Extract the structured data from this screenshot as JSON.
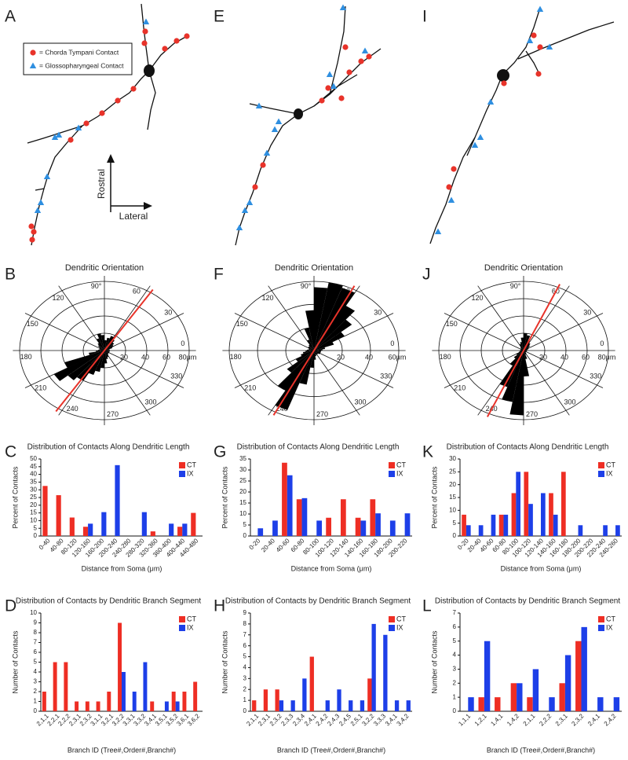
{
  "figure": {
    "panel_labels": [
      "A",
      "E",
      "I",
      "B",
      "F",
      "J",
      "C",
      "G",
      "K",
      "D",
      "H",
      "L"
    ],
    "contact_legend": [
      "= Chorda Tympani Contact",
      "= Glossopharyngeal Contact"
    ],
    "directions": [
      "Rostral",
      "Lateral"
    ]
  },
  "chart_data": [
    {
      "type": "polar",
      "title": "Dendritic Orientation",
      "rlim": [
        0,
        80
      ],
      "rticks": [
        20,
        40,
        60,
        {
          "value": 80,
          "label": "80μm"
        }
      ],
      "thetaticks": [
        0,
        30,
        60,
        {
          "value": 90,
          "label": "90°"
        },
        120,
        150,
        180,
        210,
        240,
        270,
        300,
        330
      ],
      "theta": [
        5,
        15,
        25,
        35,
        45,
        55,
        65,
        75,
        85,
        95,
        105,
        115,
        125,
        135,
        145,
        155,
        165,
        175,
        185,
        195,
        205,
        215,
        225,
        235,
        245,
        255,
        265,
        275,
        285,
        295,
        305,
        315,
        325,
        335,
        345,
        355
      ],
      "values": [
        5,
        5,
        8,
        10,
        12,
        15,
        18,
        15,
        12,
        18,
        20,
        15,
        10,
        8,
        6,
        5,
        5,
        6,
        8,
        15,
        40,
        55,
        45,
        40,
        30,
        25,
        20,
        15,
        10,
        8,
        6,
        5,
        5,
        5,
        5,
        5
      ],
      "color": "#000000",
      "mean_angle": 57,
      "mean_color": "#e8332a"
    },
    {
      "type": "polar",
      "title": "Dendritic Orientation",
      "rlim": [
        0,
        60
      ],
      "rticks": [
        20,
        40,
        {
          "value": 60,
          "label": "60μm"
        }
      ],
      "thetaticks": [
        0,
        30,
        60,
        {
          "value": 90,
          "label": "90°"
        },
        120,
        150,
        180,
        210,
        240,
        270,
        300,
        330
      ],
      "theta": [
        5,
        15,
        25,
        35,
        45,
        55,
        65,
        75,
        85,
        95,
        105,
        115,
        125,
        135,
        145,
        155,
        165,
        175,
        185,
        195,
        205,
        215,
        225,
        235,
        245,
        255,
        265,
        275,
        285,
        295,
        305,
        315,
        325,
        335,
        345,
        355
      ],
      "values": [
        6,
        8,
        15,
        25,
        35,
        45,
        58,
        60,
        55,
        35,
        20,
        10,
        6,
        5,
        5,
        4,
        4,
        5,
        6,
        8,
        10,
        15,
        25,
        40,
        55,
        30,
        15,
        8,
        5,
        4,
        4,
        4,
        5,
        5,
        5,
        5
      ],
      "color": "#000000",
      "mean_angle": 63,
      "mean_color": "#e8332a"
    },
    {
      "type": "polar",
      "title": "Dendritic Orientation",
      "rlim": [
        0,
        80
      ],
      "rticks": [
        20,
        40,
        60,
        {
          "value": 80,
          "label": "80μm"
        }
      ],
      "thetaticks": [
        0,
        30,
        60,
        {
          "value": 90,
          "label": "90°"
        },
        120,
        150,
        180,
        210,
        240,
        270,
        300,
        330
      ],
      "theta": [
        5,
        15,
        25,
        35,
        45,
        55,
        65,
        75,
        85,
        95,
        105,
        115,
        125,
        135,
        145,
        155,
        165,
        175,
        185,
        195,
        205,
        215,
        225,
        235,
        245,
        255,
        265,
        275,
        285,
        295,
        305,
        315,
        325,
        335,
        345,
        355
      ],
      "values": [
        3,
        4,
        5,
        6,
        8,
        10,
        12,
        18,
        20,
        15,
        10,
        8,
        5,
        4,
        3,
        3,
        3,
        3,
        3,
        4,
        5,
        8,
        12,
        20,
        45,
        60,
        75,
        30,
        10,
        5,
        4,
        3,
        3,
        3,
        3,
        3
      ],
      "color": "#000000",
      "mean_angle": 66,
      "mean_color": "#e8332a"
    },
    {
      "type": "bar",
      "title": "Distribution of Contacts Along Dendritic Length",
      "xlabel": "Distance from Soma (μm)",
      "ylabel": "Percent of Contacts",
      "categories": [
        "0-40",
        "40-80",
        "80-120",
        "120-160",
        "160-200",
        "200-240",
        "240-280",
        "280-320",
        "320-360",
        "360-400",
        "400-440",
        "440-480"
      ],
      "series": [
        {
          "name": "CT",
          "color": "#ee2e24",
          "values": [
            32.5,
            26.5,
            12,
            6,
            0,
            0,
            0,
            0,
            3,
            0,
            6,
            15
          ]
        },
        {
          "name": "IX",
          "color": "#1d3fe8",
          "values": [
            0,
            0,
            0,
            8,
            15.5,
            46,
            0,
            15.5,
            0,
            8,
            8,
            0
          ]
        }
      ],
      "ylim": [
        0,
        50
      ],
      "yticks": [
        0,
        5,
        10,
        15,
        20,
        25,
        30,
        35,
        40,
        45,
        50
      ],
      "legend": "upper right"
    },
    {
      "type": "bar",
      "title": "Distribution of Contacts Along Dendritic Length",
      "xlabel": "Distance from Soma (μm)",
      "ylabel": "Percent of Contacts",
      "categories": [
        "0-20",
        "20-40",
        "40-60",
        "60-80",
        "80-100",
        "100-120",
        "120-140",
        "140-160",
        "160-180",
        "180-200",
        "200-220"
      ],
      "series": [
        {
          "name": "CT",
          "color": "#ee2e24",
          "values": [
            0,
            0,
            33.3,
            16.7,
            0,
            8.3,
            16.7,
            8.3,
            16.7,
            0,
            0
          ]
        },
        {
          "name": "IX",
          "color": "#1d3fe8",
          "values": [
            3.5,
            7,
            27.6,
            17.2,
            7,
            0,
            0,
            7,
            10.3,
            7,
            10.3
          ]
        }
      ],
      "ylim": [
        0,
        35
      ],
      "yticks": [
        0,
        5,
        10,
        15,
        20,
        25,
        30,
        35
      ],
      "legend": "upper right"
    },
    {
      "type": "bar",
      "title": "Distribution of Contacts Along Dendritic Length",
      "xlabel": "Distance from Soma (μm)",
      "ylabel": "Percent of Contacts",
      "categories": [
        "0-20",
        "20-40",
        "40-60",
        "60-80",
        "80-100",
        "100-120",
        "120-140",
        "140-160",
        "160-180",
        "180-200",
        "200-220",
        "220-240",
        "240-260"
      ],
      "series": [
        {
          "name": "CT",
          "color": "#ee2e24",
          "values": [
            8.3,
            0,
            0,
            8.3,
            16.7,
            25,
            0,
            16.7,
            25,
            0,
            0,
            0,
            0
          ]
        },
        {
          "name": "IX",
          "color": "#1d3fe8",
          "values": [
            4.2,
            4.2,
            8.3,
            8.3,
            25,
            12.5,
            16.7,
            8.3,
            0,
            4.2,
            0,
            4.2,
            4.2
          ]
        }
      ],
      "ylim": [
        0,
        30
      ],
      "yticks": [
        0,
        5,
        10,
        15,
        20,
        25,
        30
      ],
      "legend": "upper right"
    },
    {
      "type": "bar",
      "title": "Distribution of Contacts by Dendritic Branch Segment",
      "xlabel": "Branch ID (Tree#,Order#,Branch#)",
      "ylabel": "Number of Contacts",
      "categories": [
        "2,1,1",
        "2,2,1",
        "2,2,2",
        "2,3,1",
        "2,3,2",
        "3,1,1",
        "3,2,1",
        "3,2,2",
        "3,3,1",
        "3,3,2",
        "3,4,1",
        "3,5,1",
        "3,5,2",
        "3,6,1",
        "3,6,2"
      ],
      "series": [
        {
          "name": "CT",
          "color": "#ee2e24",
          "values": [
            2,
            5,
            5,
            1,
            1,
            1,
            2,
            9,
            0,
            0,
            1,
            0,
            2,
            2,
            3
          ]
        },
        {
          "name": "IX",
          "color": "#1d3fe8",
          "values": [
            0,
            0,
            0,
            0,
            0,
            0,
            0,
            4,
            2,
            5,
            0,
            1,
            1,
            0,
            0
          ]
        }
      ],
      "ylim": [
        0,
        10
      ],
      "yticks": [
        0,
        1,
        2,
        3,
        4,
        5,
        6,
        7,
        8,
        9,
        10
      ],
      "legend": "upper right"
    },
    {
      "type": "bar",
      "title": "Distribution of Contacts by Dendritic Branch Segment",
      "xlabel": "Branch ID (Tree#,Order#,Branch#)",
      "ylabel": "Number of Contacts",
      "categories": [
        "2,1,1",
        "2,3,1",
        "2,3,2",
        "2,3,3",
        "2,3,4",
        "2,4,1",
        "2,4,2",
        "2,4,3",
        "2,4,5",
        "2,5,1",
        "3,2,2",
        "3,3,3",
        "3,4,1",
        "3,4,2"
      ],
      "series": [
        {
          "name": "CT",
          "color": "#ee2e24",
          "values": [
            1,
            2,
            2,
            0,
            0,
            5,
            0,
            0,
            0,
            0,
            3,
            0,
            0,
            0
          ]
        },
        {
          "name": "IX",
          "color": "#1d3fe8",
          "values": [
            0,
            0,
            1,
            1,
            3,
            0,
            1,
            2,
            1,
            1,
            8,
            7,
            1,
            1
          ]
        }
      ],
      "ylim": [
        0,
        9
      ],
      "yticks": [
        0,
        1,
        2,
        3,
        4,
        5,
        6,
        7,
        8,
        9
      ],
      "legend": "upper right"
    },
    {
      "type": "bar",
      "title": "Distribution of Contacts by Dendritic Branch Segment",
      "xlabel": "Branch ID (Tree#,Order#,Branch#)",
      "ylabel": "Number of Contacts",
      "categories": [
        "1,1,1",
        "1,2,1",
        "1,4,1",
        "1,4,2",
        "2,1,1",
        "2,2,2",
        "2,3,1",
        "2,3,2",
        "2,4,1",
        "2,4,2"
      ],
      "series": [
        {
          "name": "CT",
          "color": "#ee2e24",
          "values": [
            0,
            1,
            1,
            2,
            1,
            0,
            2,
            5,
            0,
            0
          ]
        },
        {
          "name": "IX",
          "color": "#1d3fe8",
          "values": [
            1,
            5,
            0,
            2,
            3,
            1,
            4,
            6,
            1,
            1
          ]
        }
      ],
      "ylim": [
        0,
        7
      ],
      "yticks": [
        0,
        1,
        2,
        3,
        4,
        5,
        6,
        7
      ],
      "legend": "upper right"
    }
  ]
}
